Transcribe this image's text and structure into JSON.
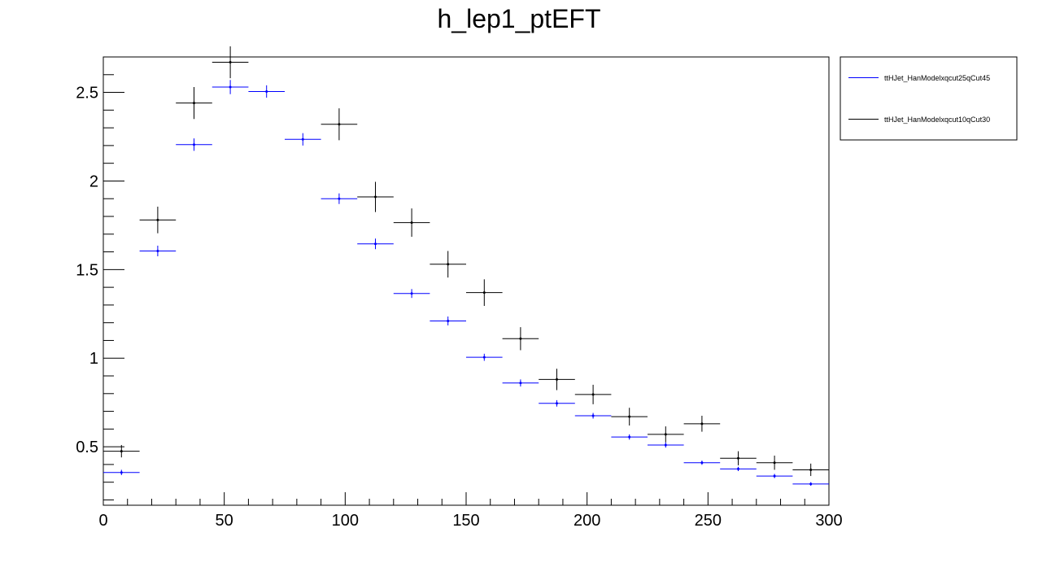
{
  "chart_data": {
    "type": "scatter",
    "title": "h_lep1_ptEFT",
    "xlabel": "",
    "ylabel": "",
    "xlim": [
      0,
      300
    ],
    "ylim": [
      0.17,
      2.7
    ],
    "x_ticks": [
      0,
      50,
      100,
      150,
      200,
      250,
      300
    ],
    "y_ticks": [
      0.5,
      1,
      1.5,
      2,
      2.5
    ],
    "x_tick_labels": [
      "0",
      "50",
      "100",
      "150",
      "200",
      "250",
      "300"
    ],
    "y_tick_labels": [
      "0.5",
      "1",
      "1.5",
      "2",
      "2.5"
    ],
    "bin_width": 15,
    "grid": false,
    "legend_position": "top-right",
    "series": [
      {
        "name": "ttHJet_HanModelxqcut25qCut45",
        "color": "#0000ff",
        "x": [
          7.5,
          22.5,
          37.5,
          52.5,
          67.5,
          82.5,
          97.5,
          112.5,
          127.5,
          142.5,
          157.5,
          172.5,
          187.5,
          202.5,
          217.5,
          232.5,
          247.5,
          262.5,
          277.5,
          292.5
        ],
        "y": [
          0.355,
          1.605,
          2.205,
          2.53,
          2.505,
          2.235,
          1.9,
          1.645,
          1.365,
          1.21,
          1.005,
          0.86,
          0.745,
          0.675,
          0.555,
          0.51,
          0.41,
          0.375,
          0.335,
          0.29
        ],
        "yerr": [
          0.015,
          0.03,
          0.035,
          0.04,
          0.035,
          0.035,
          0.03,
          0.03,
          0.025,
          0.025,
          0.02,
          0.02,
          0.018,
          0.016,
          0.015,
          0.015,
          0.012,
          0.012,
          0.012,
          0.01
        ]
      },
      {
        "name": "ttHJet_HanModelxqcut10qCut30",
        "color": "#000000",
        "x": [
          7.5,
          22.5,
          37.5,
          52.5,
          97.5,
          112.5,
          127.5,
          142.5,
          157.5,
          172.5,
          187.5,
          202.5,
          217.5,
          232.5,
          247.5,
          262.5,
          277.5,
          292.5
        ],
        "y": [
          0.475,
          1.78,
          2.44,
          2.67,
          2.32,
          1.91,
          1.765,
          1.53,
          1.37,
          1.11,
          0.88,
          0.795,
          0.67,
          0.57,
          0.63,
          0.435,
          0.41,
          0.37
        ],
        "yerr": [
          0.035,
          0.075,
          0.09,
          0.09,
          0.09,
          0.085,
          0.08,
          0.075,
          0.075,
          0.065,
          0.06,
          0.055,
          0.05,
          0.045,
          0.045,
          0.04,
          0.04,
          0.035
        ]
      }
    ]
  }
}
